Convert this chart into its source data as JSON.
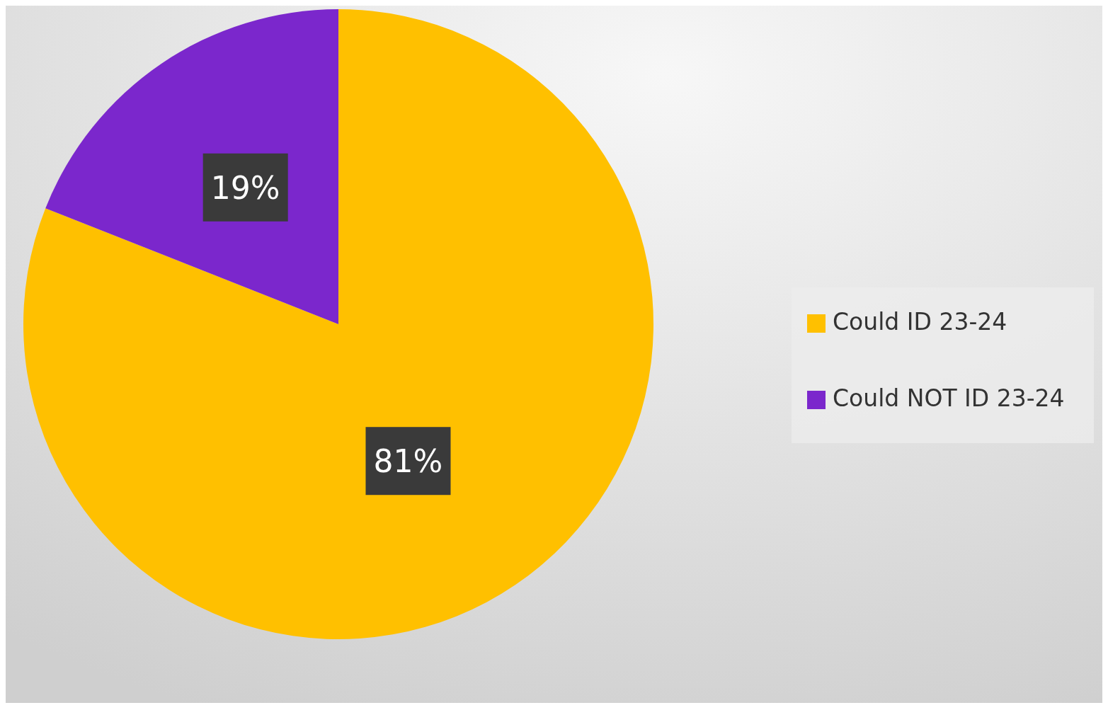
{
  "chart_data": {
    "type": "pie",
    "categories": [
      "Could ID 23-24",
      "Could NOT ID 23-24"
    ],
    "values": [
      81,
      19
    ],
    "colors": [
      "#ffc000",
      "#7b27cc"
    ],
    "value_labels": [
      "81%",
      "19%"
    ],
    "legend": "right"
  }
}
